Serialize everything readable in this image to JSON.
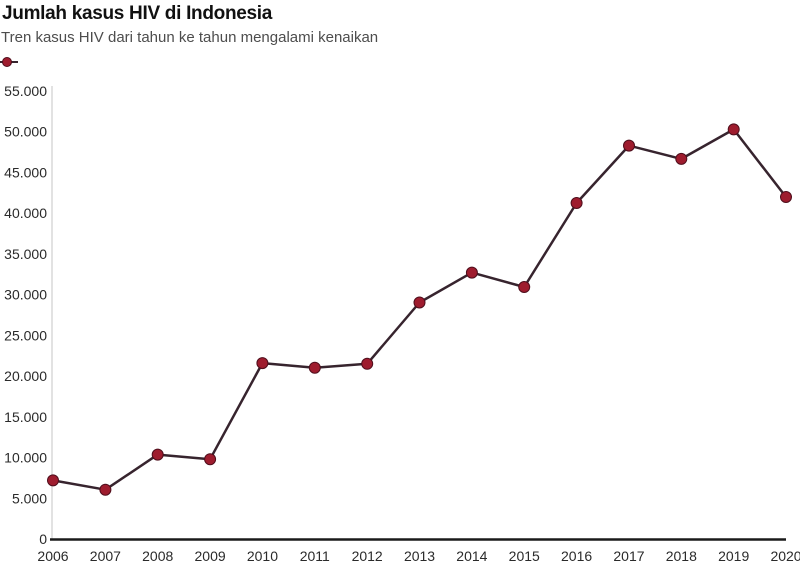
{
  "header": {
    "title": "Jumlah kasus HIV di Indonesia",
    "subtitle": "Tren kasus HIV dari tahun ke tahun mengalami kenaikan"
  },
  "legend": {
    "position": "top-left",
    "marker": "line-with-dot"
  },
  "chart_data": {
    "type": "line",
    "title": "Jumlah kasus HIV di Indonesia",
    "subtitle": "Tren kasus HIV dari tahun ke tahun mengalami kenaikan",
    "categories": [
      "2006",
      "2007",
      "2008",
      "2009",
      "2010",
      "2011",
      "2012",
      "2013",
      "2014",
      "2015",
      "2016",
      "2017",
      "2018",
      "2019",
      "2020"
    ],
    "values": [
      7195,
      6048,
      10362,
      9793,
      21591,
      21031,
      21511,
      29037,
      32711,
      30935,
      41250,
      48300,
      46659,
      50282,
      41987
    ],
    "ylim": [
      0,
      55000
    ],
    "ytick_values": [
      0,
      5000,
      10000,
      15000,
      20000,
      25000,
      30000,
      35000,
      40000,
      45000,
      50000,
      55000
    ],
    "ytick_labels": [
      "0",
      "5.000",
      "10.000",
      "15.000",
      "20.000",
      "25.000",
      "30.000",
      "35.000",
      "40.000",
      "45.000",
      "50.000",
      "55.000"
    ],
    "grid": false,
    "legend_position": "top-left",
    "colors": {
      "point": "#9e1c2e",
      "point_stroke": "#4f0e1c",
      "line": "#37242e",
      "axis": "#1a1a1a",
      "axis_light": "#e2e2e2",
      "tick_text": "#2a2a2a"
    }
  }
}
